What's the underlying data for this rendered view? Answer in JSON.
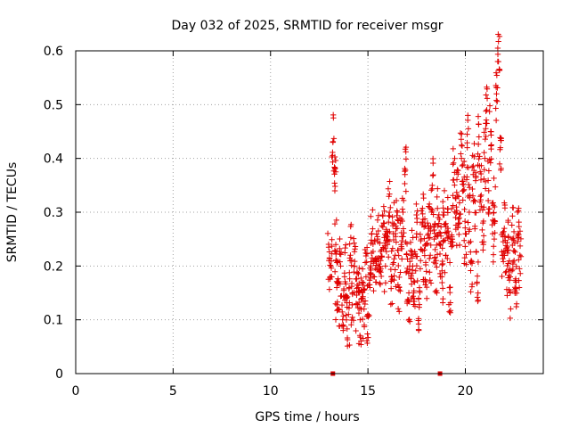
{
  "chart_data": {
    "type": "scatter",
    "title": "Day 032 of 2025, SRMTID for receiver msgr",
    "xlabel": "GPS time / hours",
    "ylabel": "SRMTID / TECUs",
    "xlim": [
      0,
      24
    ],
    "ylim": [
      0,
      0.6
    ],
    "xticks": [
      0,
      5,
      10,
      15,
      20
    ],
    "xtick_labels": [
      "0",
      "5",
      "10",
      "15",
      "20"
    ],
    "yticks": [
      0,
      0.1,
      0.2,
      0.3,
      0.4,
      0.5,
      0.6
    ],
    "ytick_labels": [
      "0",
      "0.1",
      "0.2",
      "0.3",
      "0.4",
      "0.5",
      "0.6"
    ],
    "grid": true,
    "marker": "+",
    "color": "#e00000",
    "zero_markers": [
      13.2,
      18.7
    ],
    "series": [
      {
        "name": "SRMTID",
        "x": [
          13.0,
          13.1,
          13.2,
          13.3,
          13.35,
          13.4,
          13.5,
          13.6,
          13.7,
          13.8,
          13.9,
          14.0,
          14.1,
          14.2,
          14.3,
          14.4,
          14.5,
          14.6,
          14.7,
          14.8,
          14.9,
          15.0,
          15.1,
          15.2,
          15.3,
          15.4,
          15.5,
          15.6,
          15.7,
          15.8,
          15.9,
          16.0,
          16.1,
          16.2,
          16.3,
          16.4,
          16.5,
          16.6,
          16.7,
          16.8,
          16.9,
          17.0,
          17.1,
          17.2,
          17.3,
          17.4,
          17.5,
          17.6,
          17.7,
          17.8,
          17.9,
          18.0,
          18.1,
          18.2,
          18.3,
          18.4,
          18.5,
          18.6,
          18.7,
          18.8,
          18.9,
          19.0,
          19.1,
          19.2,
          19.3,
          19.4,
          19.5,
          19.6,
          19.7,
          19.8,
          19.9,
          20.0,
          20.1,
          20.2,
          20.3,
          20.4,
          20.5,
          20.6,
          20.7,
          20.8,
          20.9,
          21.0,
          21.1,
          21.2,
          21.3,
          21.4,
          21.5,
          21.6,
          21.7,
          21.8,
          21.9,
          22.0,
          22.1,
          22.2,
          22.3,
          22.4,
          22.5,
          22.6,
          22.7,
          22.8
        ],
        "y": [
          0.21,
          0.2,
          0.43,
          0.38,
          0.24,
          0.16,
          0.12,
          0.2,
          0.1,
          0.18,
          0.14,
          0.11,
          0.22,
          0.15,
          0.2,
          0.13,
          0.16,
          0.1,
          0.14,
          0.12,
          0.18,
          0.11,
          0.16,
          0.26,
          0.21,
          0.17,
          0.25,
          0.19,
          0.23,
          0.28,
          0.2,
          0.24,
          0.3,
          0.18,
          0.26,
          0.22,
          0.27,
          0.16,
          0.24,
          0.3,
          0.37,
          0.19,
          0.15,
          0.22,
          0.2,
          0.17,
          0.26,
          0.14,
          0.21,
          0.28,
          0.23,
          0.19,
          0.27,
          0.22,
          0.35,
          0.25,
          0.21,
          0.29,
          0.24,
          0.18,
          0.3,
          0.22,
          0.27,
          0.16,
          0.25,
          0.36,
          0.29,
          0.33,
          0.28,
          0.4,
          0.34,
          0.26,
          0.42,
          0.3,
          0.21,
          0.37,
          0.32,
          0.17,
          0.44,
          0.36,
          0.28,
          0.4,
          0.49,
          0.34,
          0.45,
          0.26,
          0.31,
          0.52,
          0.58,
          0.42,
          0.22,
          0.27,
          0.19,
          0.23,
          0.15,
          0.25,
          0.21,
          0.17,
          0.26,
          0.22
        ]
      }
    ]
  }
}
